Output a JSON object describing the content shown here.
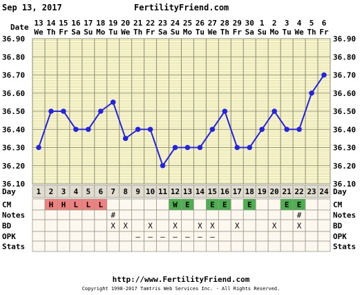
{
  "header": {
    "date_label": "Sep 13, 2017",
    "site": "FertilityFriend.com"
  },
  "footer": {
    "url": "http://www.FertilityFriend.com",
    "copyright": "Copyright 1998-2017 Tamtris Web Services Inc. - All Rights Reserved."
  },
  "colors": {
    "line": "#2323e0",
    "grid_bg": "#fffbd0",
    "grid_line": "#8c8c6e",
    "day_bg": "#e0ddd0",
    "cm_bleed": "#f08080",
    "cm_egg": "#4caf50",
    "row_bg": "#fcf7ef"
  },
  "row_labels": {
    "date": "Date",
    "day": "Day",
    "cm": "CM",
    "notes": "Notes",
    "bd": "BD",
    "opk": "OPK",
    "stats": "Stats"
  },
  "chart_data": {
    "type": "line",
    "dates": [
      "13",
      "14",
      "15",
      "16",
      "17",
      "18",
      "19",
      "20",
      "21",
      "22",
      "23",
      "24",
      "25",
      "26",
      "27",
      "28",
      "29",
      "30",
      "1",
      "2",
      "3",
      "4",
      "5",
      "6"
    ],
    "weekdays": [
      "We",
      "Th",
      "Fr",
      "Sa",
      "Su",
      "Mo",
      "Tu",
      "We",
      "Th",
      "Fr",
      "Sa",
      "Su",
      "Mo",
      "Tu",
      "We",
      "Th",
      "Fr",
      "Sa",
      "Su",
      "Mo",
      "Tu",
      "We",
      "Th",
      "Fr"
    ],
    "days": [
      "1",
      "2",
      "3",
      "4",
      "5",
      "6",
      "7",
      "8",
      "9",
      "10",
      "11",
      "12",
      "13",
      "14",
      "15",
      "16",
      "17",
      "18",
      "19",
      "20",
      "21",
      "22",
      "23",
      "24"
    ],
    "temperatures": [
      36.3,
      36.5,
      36.5,
      36.4,
      36.4,
      36.5,
      36.55,
      36.35,
      36.4,
      36.4,
      36.2,
      36.3,
      36.3,
      36.3,
      36.4,
      36.5,
      36.3,
      36.3,
      36.4,
      36.5,
      36.4,
      36.4,
      36.6,
      36.7
    ],
    "y_ticks": [
      "36.90",
      "36.80",
      "36.70",
      "36.60",
      "36.50",
      "36.40",
      "36.30",
      "36.20",
      "36.10"
    ],
    "ylim": [
      36.1,
      36.9
    ],
    "cm": [
      "",
      "H",
      "H",
      "L",
      "L",
      "L",
      "",
      "",
      "",
      "",
      "",
      "W",
      "E",
      "",
      "E",
      "E",
      "",
      "E",
      "",
      "",
      "E",
      "E",
      "",
      ""
    ],
    "notes": [
      "",
      "",
      "",
      "",
      "",
      "",
      "#",
      "",
      "",
      "",
      "",
      "",
      "",
      "",
      "",
      "",
      "",
      "",
      "",
      "",
      "",
      "#",
      "",
      ""
    ],
    "bd": [
      "",
      "",
      "",
      "",
      "",
      "",
      "X",
      "X",
      "",
      "X",
      "",
      "X",
      "",
      "X",
      "X",
      "",
      "X",
      "",
      "",
      "X",
      "",
      "X",
      "",
      ""
    ],
    "opk": [
      "",
      "",
      "",
      "",
      "",
      "",
      "",
      "",
      "–",
      "–",
      "–",
      "–",
      "–",
      "–",
      "–",
      "",
      "",
      "",
      "",
      "",
      "",
      "",
      "",
      ""
    ],
    "stats": [
      "",
      "",
      "",
      "",
      "",
      "",
      "",
      "",
      "",
      "",
      "",
      "",
      "",
      "",
      "",
      "",
      "",
      "",
      "",
      "",
      "",
      "",
      "",
      ""
    ]
  }
}
